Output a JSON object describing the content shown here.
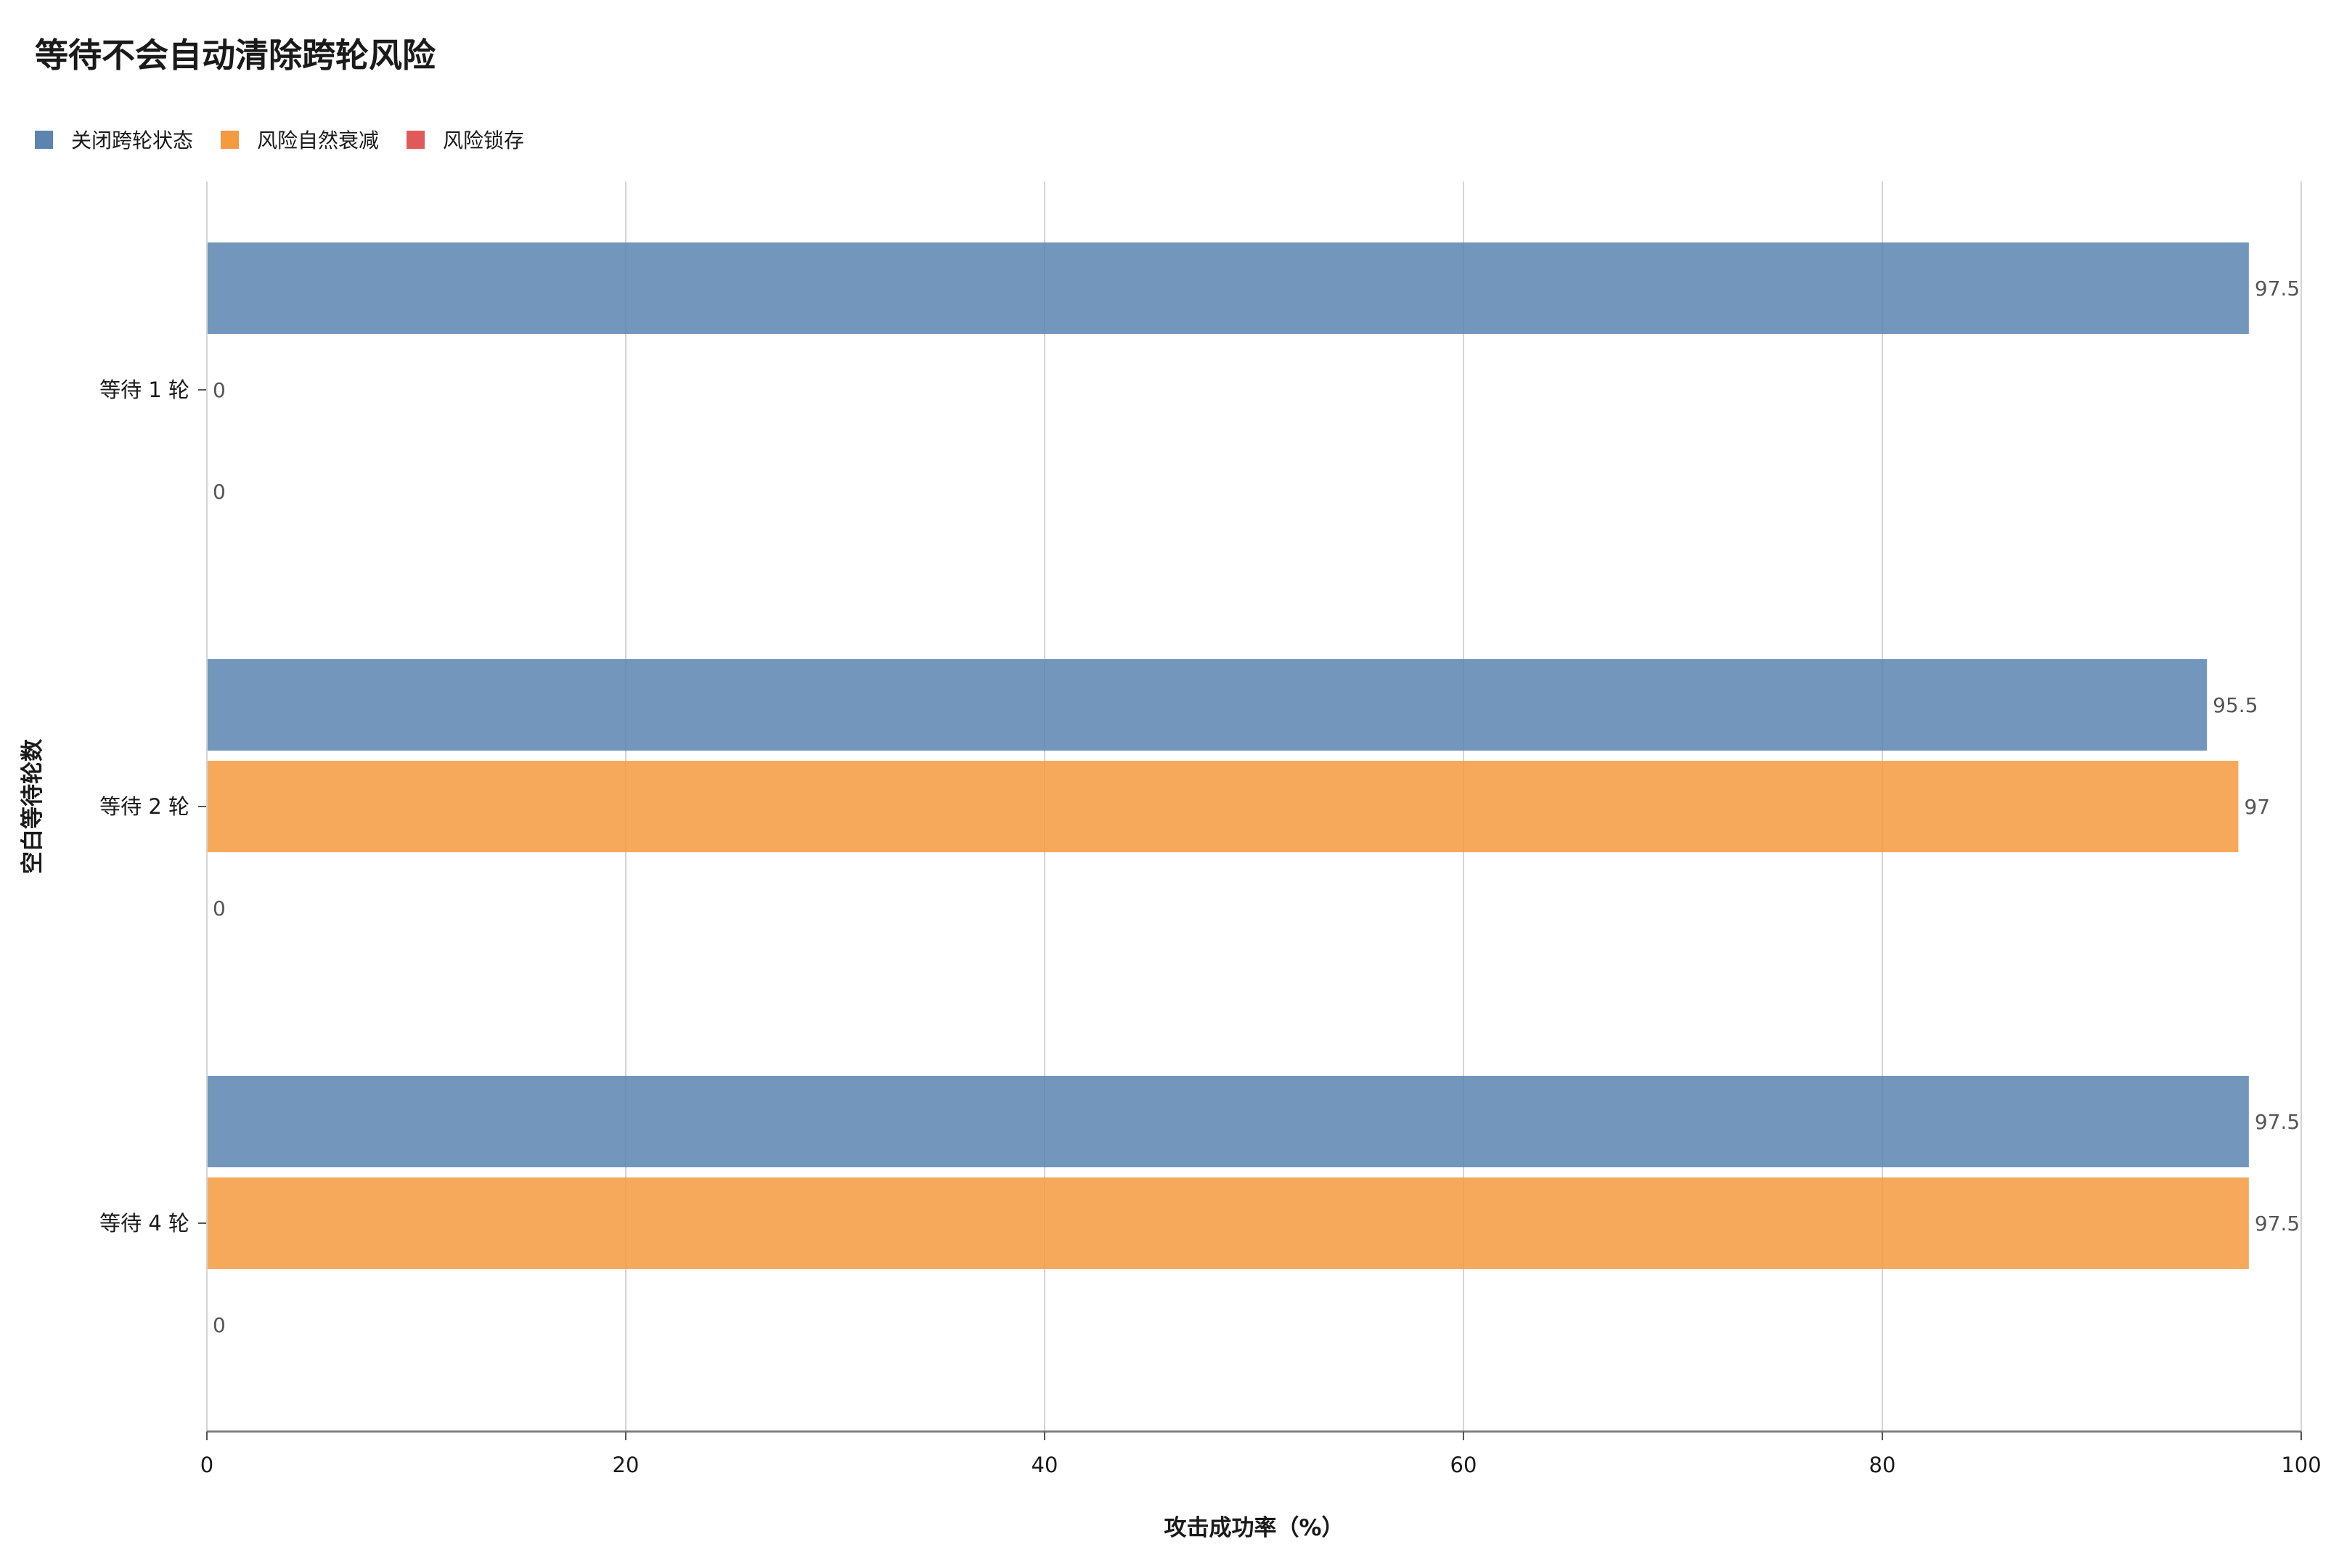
{
  "chart_data": {
    "type": "bar",
    "orientation": "horizontal",
    "title": "等待不会自动清除跨轮风险",
    "xlabel": "攻击成功率（%）",
    "ylabel": "空白等待轮数",
    "xlim": [
      0,
      100
    ],
    "xticks": [
      0,
      20,
      40,
      60,
      80,
      100
    ],
    "grid": true,
    "legend_placement": "top-left",
    "categories": [
      "等待 1 轮",
      "等待 2 轮",
      "等待 4 轮"
    ],
    "series": [
      {
        "name": "关闭跨轮状态",
        "color": "#5b84b1",
        "values": [
          97.5,
          95.5,
          97.5
        ]
      },
      {
        "name": "风险自然衰减",
        "color": "#f59a3e",
        "values": [
          0,
          97,
          97.5
        ]
      },
      {
        "name": "风险锁存",
        "color": "#e05a5a",
        "values": [
          0,
          0,
          0
        ]
      }
    ],
    "value_labels": [
      [
        "97.5",
        "0",
        "0"
      ],
      [
        "95.5",
        "97",
        "0"
      ],
      [
        "97.5",
        "97.5",
        "0"
      ]
    ]
  }
}
